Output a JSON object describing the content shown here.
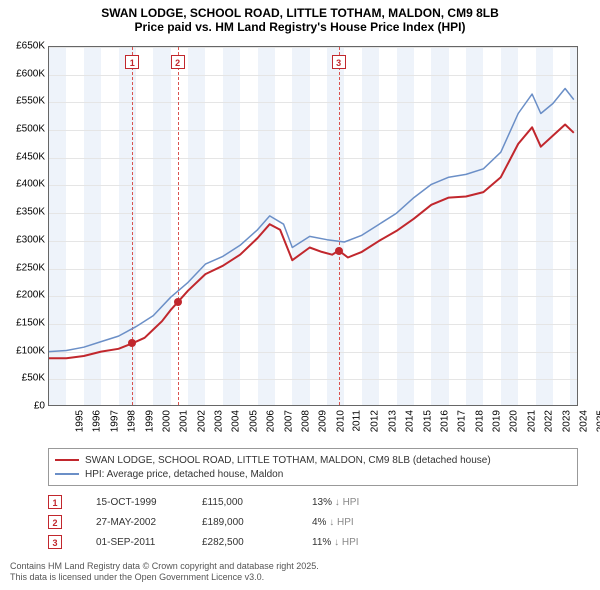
{
  "title_line1": "SWAN LODGE, SCHOOL ROAD, LITTLE TOTHAM, MALDON, CM9 8LB",
  "title_line2": "Price paid vs. HM Land Registry's House Price Index (HPI)",
  "chart": {
    "type": "line",
    "background_color": "#ffffff",
    "grid_color": "#e5e5e5",
    "band_color": "#eef3fa",
    "x": {
      "min": 1995,
      "max": 2025.5,
      "ticks": [
        1995,
        1996,
        1997,
        1998,
        1999,
        2000,
        2001,
        2002,
        2003,
        2004,
        2005,
        2006,
        2007,
        2008,
        2009,
        2010,
        2011,
        2012,
        2013,
        2014,
        2015,
        2016,
        2017,
        2018,
        2019,
        2020,
        2021,
        2022,
        2023,
        2024,
        2025
      ]
    },
    "y": {
      "min": 0,
      "max": 650000,
      "tick_step": 50000,
      "labels": [
        "£0",
        "£50K",
        "£100K",
        "£150K",
        "£200K",
        "£250K",
        "£300K",
        "£350K",
        "£400K",
        "£450K",
        "£500K",
        "£550K",
        "£600K",
        "£650K"
      ]
    },
    "bands": [
      [
        1995,
        1996
      ],
      [
        1997,
        1998
      ],
      [
        1999,
        2000
      ],
      [
        2001,
        2002
      ],
      [
        2003,
        2004
      ],
      [
        2005,
        2006
      ],
      [
        2007,
        2008
      ],
      [
        2009,
        2010
      ],
      [
        2011,
        2012
      ],
      [
        2013,
        2014
      ],
      [
        2015,
        2016
      ],
      [
        2017,
        2018
      ],
      [
        2019,
        2020
      ],
      [
        2021,
        2022
      ],
      [
        2023,
        2024
      ],
      [
        2025,
        2025.5
      ]
    ],
    "series": [
      {
        "name": "SWAN LODGE, SCHOOL ROAD, LITTLE TOTHAM, MALDON, CM9 8LB (detached house)",
        "color": "#c1272d",
        "line_width": 2,
        "points": [
          [
            1995.0,
            88
          ],
          [
            1996.0,
            88
          ],
          [
            1997.0,
            92
          ],
          [
            1998.0,
            100
          ],
          [
            1999.0,
            105
          ],
          [
            1999.8,
            115
          ],
          [
            2000.5,
            125
          ],
          [
            2001.0,
            140
          ],
          [
            2001.5,
            155
          ],
          [
            2002.0,
            175
          ],
          [
            2002.4,
            189
          ],
          [
            2003.0,
            210
          ],
          [
            2004.0,
            240
          ],
          [
            2005.0,
            255
          ],
          [
            2006.0,
            275
          ],
          [
            2007.0,
            305
          ],
          [
            2007.7,
            330
          ],
          [
            2008.3,
            320
          ],
          [
            2009.0,
            265
          ],
          [
            2010.0,
            288
          ],
          [
            2010.7,
            280
          ],
          [
            2011.3,
            275
          ],
          [
            2011.67,
            282.5
          ],
          [
            2012.2,
            270
          ],
          [
            2013.0,
            280
          ],
          [
            2014.0,
            300
          ],
          [
            2015.0,
            318
          ],
          [
            2016.0,
            340
          ],
          [
            2017.0,
            365
          ],
          [
            2018.0,
            378
          ],
          [
            2019.0,
            380
          ],
          [
            2020.0,
            388
          ],
          [
            2021.0,
            415
          ],
          [
            2022.0,
            475
          ],
          [
            2022.8,
            505
          ],
          [
            2023.3,
            470
          ],
          [
            2024.0,
            490
          ],
          [
            2024.7,
            510
          ],
          [
            2025.2,
            495
          ]
        ]
      },
      {
        "name": "HPI: Average price, detached house, Maldon",
        "color": "#6b8fc7",
        "line_width": 1.5,
        "points": [
          [
            1995.0,
            100
          ],
          [
            1996.0,
            102
          ],
          [
            1997.0,
            108
          ],
          [
            1998.0,
            118
          ],
          [
            1999.0,
            128
          ],
          [
            2000.0,
            145
          ],
          [
            2001.0,
            165
          ],
          [
            2002.0,
            198
          ],
          [
            2003.0,
            225
          ],
          [
            2004.0,
            258
          ],
          [
            2005.0,
            272
          ],
          [
            2006.0,
            292
          ],
          [
            2007.0,
            320
          ],
          [
            2007.7,
            345
          ],
          [
            2008.5,
            330
          ],
          [
            2009.0,
            288
          ],
          [
            2010.0,
            308
          ],
          [
            2011.0,
            302
          ],
          [
            2012.0,
            298
          ],
          [
            2013.0,
            310
          ],
          [
            2014.0,
            330
          ],
          [
            2015.0,
            350
          ],
          [
            2016.0,
            378
          ],
          [
            2017.0,
            402
          ],
          [
            2018.0,
            415
          ],
          [
            2019.0,
            420
          ],
          [
            2020.0,
            430
          ],
          [
            2021.0,
            460
          ],
          [
            2022.0,
            530
          ],
          [
            2022.8,
            565
          ],
          [
            2023.3,
            530
          ],
          [
            2024.0,
            548
          ],
          [
            2024.7,
            575
          ],
          [
            2025.2,
            555
          ]
        ]
      }
    ],
    "sale_markers": [
      {
        "n": "1",
        "x": 1999.79,
        "date": "15-OCT-1999",
        "price_val": 115,
        "price": "£115,000",
        "diff": "13%",
        "diff_note": "↓ HPI"
      },
      {
        "n": "2",
        "x": 2002.4,
        "date": "27-MAY-2002",
        "price_val": 189,
        "price": "£189,000",
        "diff": "4%",
        "diff_note": "↓ HPI"
      },
      {
        "n": "3",
        "x": 2011.67,
        "date": "01-SEP-2011",
        "price_val": 282.5,
        "price": "£282,500",
        "diff": "11%",
        "diff_note": "↓ HPI"
      }
    ]
  },
  "legend": {
    "items": [
      {
        "color": "#c1272d",
        "label": "SWAN LODGE, SCHOOL ROAD, LITTLE TOTHAM, MALDON, CM9 8LB (detached house)"
      },
      {
        "color": "#6b8fc7",
        "label": "HPI: Average price, detached house, Maldon"
      }
    ]
  },
  "footer_line1": "Contains HM Land Registry data © Crown copyright and database right 2025.",
  "footer_line2": "This data is licensed under the Open Government Licence v3.0."
}
